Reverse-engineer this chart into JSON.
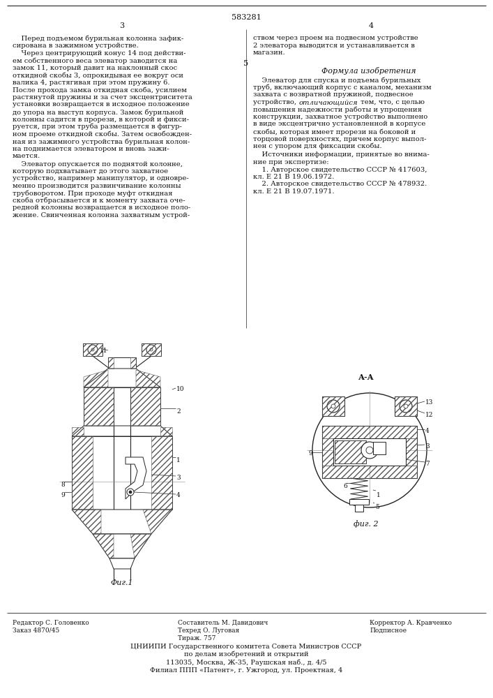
{
  "page_number_center": "583281",
  "page_col_left": "3",
  "page_col_right": "4",
  "bg_color": "#ffffff",
  "text_color": "#1a1a1a",
  "title_formula": "Формула изобретения",
  "col_left_para1": "    Перед подъемом бурильная колонна зафик-\nсирована в зажимном устройстве.",
  "col_left_para2_lines": [
    "    Через центрирующий конус 14 под действи-",
    "ем собственного веса элеватор заводится на",
    "замок 11, который давит на наклонный скос",
    "откидной скобы 3, опрокидывая ее вокруг оси",
    "валика 4, растягивая при этом пружину 6.",
    "После прохода замка откидная скоба, усилием",
    "растянутой пружины и за счет эксцентриситета",
    "установки возвращается в исходное положение",
    "до упора на выступ корпуса. Замок бурильной",
    "колонны садится в прорези, в которой и фикси-",
    "руется, при этом труба размещается в фигур-",
    "ном проеме откидной скобы. Затем освобожден-",
    "ная из зажимного устройства бурильная колон-",
    "на поднимается элеватором и вновь зажи-",
    "мается."
  ],
  "col_left_para3_lines": [
    "    Элеватор опускается по поднятой колонне,",
    "которую подхватывает до этого захватное",
    "устройство, например манипулятор, и одновре-",
    "менно производится развинчивание колонны",
    "трубоворотом. При проходе муфт откидная",
    "скоба отбрасывается и к моменту захвата оче-",
    "редной колонны возвращается в исходное поло-",
    "жение. Свинченная колонна захватным устрой-"
  ],
  "col_right_para1_lines": [
    "ством через проем на подвесном устройстве",
    "2 элеватора выводится и устанавливается в",
    "магазин."
  ],
  "right_section_num": "5",
  "formula_label": "    Элеватор для спуска и подъема бурильных",
  "formula_lines": [
    "    Элеватор для спуска и подъема бурильных",
    "труб, включающий корпус с каналом, механизм",
    "захвата с возвратной пружиной, подвесное",
    "устройство, отличающийся тем, что, с целью",
    "повышения надежности работы и упрощения",
    "конструкции, захватное устройство выполнено",
    "в виде эксцентрично установленной в корпусе",
    "скобы, которая имеет прорези на боковой и",
    "торцовой поверхностях, причем корпус выпол-",
    "нен с упором для фиксации скобы."
  ],
  "sources_header_lines": [
    "    Источники информации, принятые во внима-",
    "ние при экспертизе:"
  ],
  "source1_lines": [
    "    1. Авторское свидетельство СССР № 417603,",
    "кл. Е 21 В 19.06.1972."
  ],
  "source2_lines": [
    "    2. Авторское свидетельство СССР № 478932.",
    "кл. Е 21 В 19.07.1971."
  ],
  "fig1_label": "Фиг.1",
  "fig2_label": "фиг. 2",
  "section_label": "А-А",
  "italic_word": "отличающийся",
  "footer_left1": "Редактор С. Головенко",
  "footer_left2": "Заказ 4870/45",
  "footer_center1": "Составитель М. Давидович",
  "footer_center2": "Техред О. Луговая",
  "footer_center3": "Тираж. 757",
  "footer_right1": "Корректор А. Кравченко",
  "footer_right2": "Подписное",
  "footer_org1": "ЦНИИПИ Государственного комитета Совета Министров СССР",
  "footer_org2": "по делам изобретений и открытий",
  "footer_addr1": "113035, Москва, Ж-35, Раушская наб., д. 4/5",
  "footer_addr2": "Филиал ППП «Патент», г. Ужгород, ул. Проектная, 4",
  "hatch_color": "#555555",
  "line_color": "#222222",
  "fill_light": "#e8e8e8",
  "fill_white": "#ffffff"
}
